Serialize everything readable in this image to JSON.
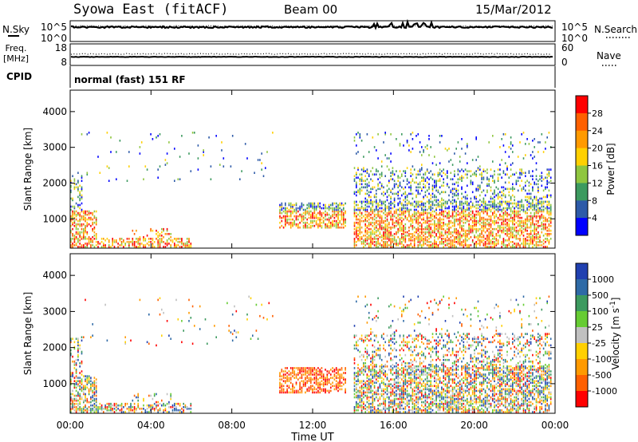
{
  "header": {
    "station": "Syowa East (fitACF)",
    "beam": "Beam 00",
    "date": "15/Mar/2012"
  },
  "noise_panel": {
    "left_label": "N.Sky",
    "left_ticks": [
      "10^5",
      "10^0"
    ],
    "right_label": "N.Search",
    "right_ticks": [
      "10^5",
      "10^0"
    ]
  },
  "freq_panel": {
    "left_label_line1": "Freq.",
    "left_label_line2": "[MHz]",
    "left_ticks": [
      "18",
      "8"
    ],
    "right_label": "Nave",
    "right_ticks": [
      "60",
      "0"
    ]
  },
  "cpid": {
    "label": "CPID",
    "value": "normal (fast) 151 RF"
  },
  "chart_data": [
    {
      "type": "heatmap",
      "title": "",
      "parameter": "Power",
      "xlabel": "Time UT",
      "ylabel": "Slant Range [km]",
      "y_ticks": [
        1000,
        2000,
        3000,
        4000
      ],
      "x_ticks": [
        "00:00",
        "04:00",
        "08:00",
        "12:00",
        "16:00",
        "20:00",
        "00:00"
      ],
      "xlim_hours": [
        0,
        24
      ],
      "ylim_km": [
        180,
        4600
      ],
      "colorbar": {
        "label": "Power [dB]",
        "ticks": [
          "28",
          "24",
          "20",
          "16",
          "12",
          "8",
          "4"
        ],
        "colors": [
          "#ff0000",
          "#ff6000",
          "#ff9a00",
          "#ffd000",
          "#8fc63f",
          "#3c9a5f",
          "#2d5aa8",
          "#0000ff"
        ]
      }
    },
    {
      "type": "heatmap",
      "title": "",
      "parameter": "Velocity",
      "xlabel": "Time UT",
      "ylabel": "Slant Range [km]",
      "y_ticks": [
        1000,
        2000,
        3000,
        4000
      ],
      "x_ticks": [
        "00:00",
        "04:00",
        "08:00",
        "12:00",
        "16:00",
        "20:00",
        "00:00"
      ],
      "xlim_hours": [
        0,
        24
      ],
      "ylim_km": [
        180,
        4600
      ],
      "colorbar": {
        "label": "Velocity [m s^-1]",
        "ticks": [
          "1000",
          "500",
          "100",
          "25",
          "-25",
          "-100",
          "-500",
          "-1000"
        ],
        "colors": [
          "#2040b0",
          "#2e6aa6",
          "#3c9a5f",
          "#66cc33",
          "#c0c0c0",
          "#ffd000",
          "#ff9a00",
          "#ff6000",
          "#ff0000"
        ]
      }
    }
  ],
  "x_axis": {
    "title": "Time UT",
    "ticks": [
      "00:00",
      "04:00",
      "08:00",
      "12:00",
      "16:00",
      "20:00",
      "00:00"
    ]
  }
}
